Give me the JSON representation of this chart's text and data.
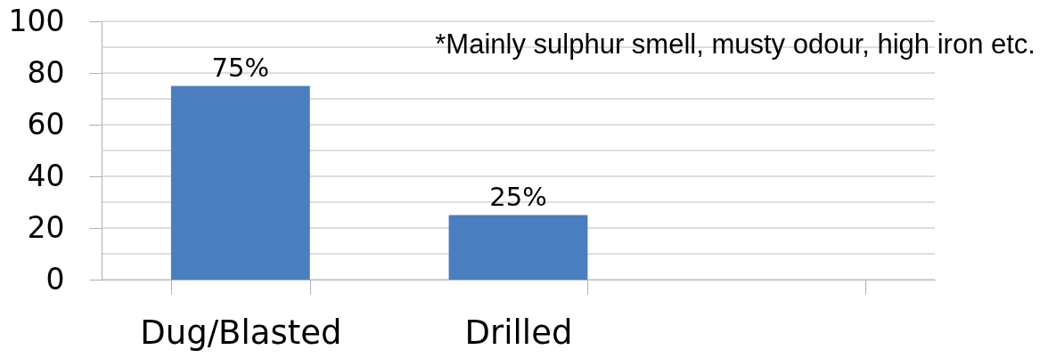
{
  "chart_data": {
    "type": "bar",
    "categories": [
      "Dug/Blasted",
      "Drilled",
      null
    ],
    "values": [
      75,
      25,
      null
    ],
    "value_labels": [
      "75%",
      "25%",
      null
    ],
    "color": "#4a7ebf",
    "ylim": [
      0,
      100
    ],
    "yticks": [
      0,
      {
        "value": 10,
        "label": null
      },
      20,
      {
        "value": 30,
        "label": null
      },
      40,
      {
        "value": 50,
        "label": null
      },
      60,
      {
        "value": 70,
        "label": null
      },
      80,
      {
        "value": 90,
        "label": null
      },
      100
    ],
    "grid": "y",
    "annotations": [
      "*Mainly sulphur smell, musty odour, high iron etc."
    ]
  }
}
